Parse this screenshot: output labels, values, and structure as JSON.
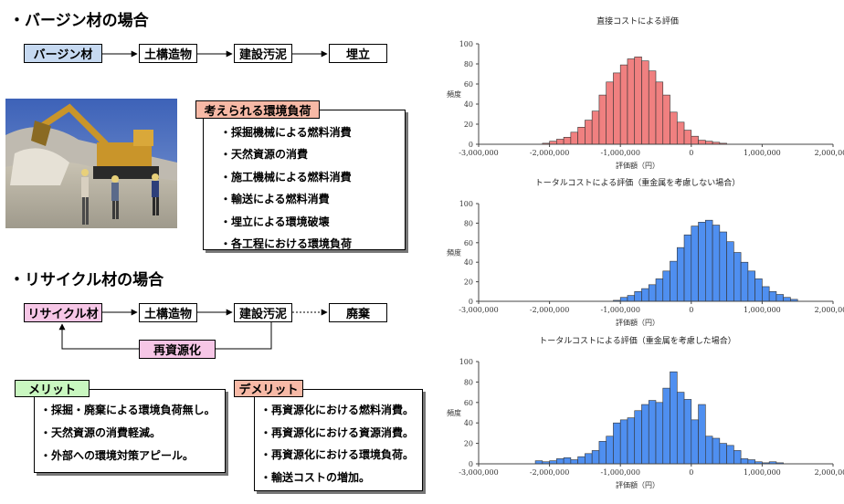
{
  "virgin": {
    "heading": "・バージン材の場合",
    "flow": [
      "バージン材",
      "土構造物",
      "建設汚泥",
      "埋立"
    ],
    "loads_title": "考えられる環境負荷",
    "loads": [
      "・採掘機械による燃料消費",
      "・天然資源の消費",
      "・施工機械による燃料消費",
      "・輸送による燃料消費",
      "・埋立による環境破壊",
      "・各工程における環境負荷"
    ]
  },
  "recycle": {
    "heading": "・リサイクル材の場合",
    "flow": [
      "リサイクル材",
      "土構造物",
      "建設汚泥",
      "廃棄"
    ],
    "loop_label": "再資源化",
    "merit_title": "メリット",
    "merits": [
      "・採掘・廃棄による環境負荷無し。",
      "・天然資源の消費軽減。",
      "・外部への環境対策アピール。"
    ],
    "demerit_title": "デメリット",
    "demerits": [
      "・再資源化における燃料消費。",
      "・再資源化における資源消費。",
      "・再資源化における環境負荷。",
      "・輸送コストの増加。"
    ]
  },
  "colors": {
    "virgin_box": "#c6d9f1",
    "loads_tag": "#f7b9a6",
    "recycle_box": "#f6c6e6",
    "merit_tag": "#c9f7c0",
    "demerit_tag": "#f7b9a6",
    "hist1": "#f08080",
    "hist2": "#4f8ff0",
    "hist3": "#4f8ff0"
  },
  "chart_data": [
    {
      "type": "bar",
      "title": "直接コストによる評価",
      "xlabel": "評価額（円）",
      "ylabel": "頻度",
      "xlim": [
        -3000000,
        2000000
      ],
      "ylim": [
        0,
        100
      ],
      "bin_width": 100000,
      "bin_start": -2100000,
      "values": [
        1,
        3,
        5,
        7,
        12,
        17,
        24,
        33,
        49,
        62,
        71,
        79,
        85,
        87,
        83,
        73,
        62,
        49,
        32,
        22,
        14,
        8,
        4,
        3,
        2,
        1
      ],
      "xticks": [
        "-3,000,000",
        "-2,000,000",
        "-1,000,000",
        "0",
        "1,000,000",
        "2,000,000"
      ],
      "yticks": [
        "0",
        "20",
        "40",
        "60",
        "80",
        "100"
      ]
    },
    {
      "type": "bar",
      "title": "トータルコストによる評価（重金属を考慮しない場合）",
      "xlabel": "評価額（円）",
      "ylabel": "頻度",
      "xlim": [
        -3000000,
        2000000
      ],
      "ylim": [
        0,
        100
      ],
      "bin_width": 100000,
      "bin_start": -1100000,
      "values": [
        1,
        4,
        6,
        10,
        13,
        17,
        23,
        31,
        41,
        55,
        68,
        77,
        81,
        83,
        78,
        71,
        61,
        50,
        40,
        31,
        23,
        15,
        10,
        7,
        4,
        2
      ],
      "xticks": [
        "-3,000,000",
        "-2,000,000",
        "-1,000,000",
        "0",
        "1,000,000",
        "2,000,000"
      ],
      "yticks": [
        "0",
        "20",
        "40",
        "60",
        "80",
        "100"
      ]
    },
    {
      "type": "bar",
      "title": "トータルコストによる評価（重金属を考慮した場合）",
      "xlabel": "評価額（円）",
      "ylabel": "頻度",
      "xlim": [
        -3000000,
        2000000
      ],
      "ylim": [
        0,
        100
      ],
      "bin_width": 100000,
      "bin_start": -2200000,
      "values": [
        3,
        2,
        3,
        5,
        6,
        4,
        7,
        10,
        13,
        22,
        27,
        40,
        43,
        45,
        52,
        58,
        62,
        60,
        74,
        90,
        70,
        63,
        43,
        58,
        27,
        25,
        20,
        18,
        13,
        5,
        4,
        2,
        1,
        2,
        1
      ],
      "xticks": [
        "-3,000,000",
        "-2,000,000",
        "-1,000,000",
        "0",
        "1,000,000",
        "2,000,000"
      ],
      "yticks": [
        "0",
        "20",
        "40",
        "60",
        "80",
        "100"
      ]
    }
  ]
}
